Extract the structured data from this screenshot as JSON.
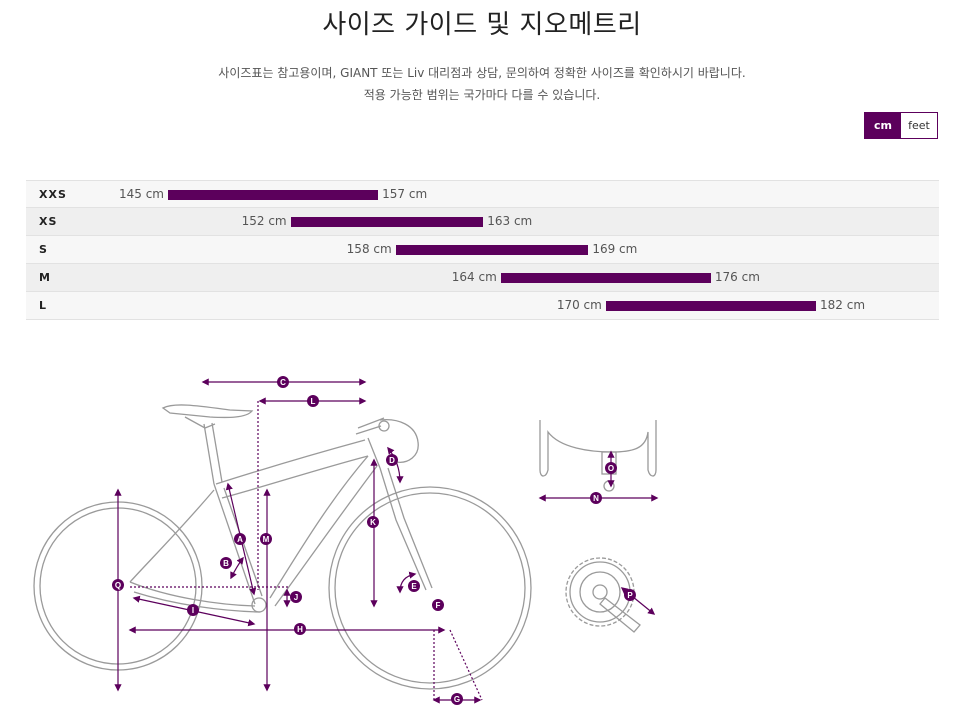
{
  "header": {
    "title": "사이즈 가이드 및 지오메트리",
    "desc_line1": "사이즈표는 참고용이며, GIANT 또는 Liv 대리점과 상담, 문의하여 정확한 사이즈를 확인하시기 바랍니다.",
    "desc_line2": "적용 가능한 범위는 국가마다 다를 수 있습니다."
  },
  "units": {
    "selected": "cm",
    "options": [
      "cm",
      "feet"
    ]
  },
  "size_chart": {
    "axis_unit": "cm",
    "accent_color": "#5c005c",
    "rows": [
      {
        "size": "XXS",
        "min": 145,
        "max": 157,
        "min_label": "145 cm",
        "max_label": "157 cm"
      },
      {
        "size": "XS",
        "min": 152,
        "max": 163,
        "min_label": "152 cm",
        "max_label": "163 cm"
      },
      {
        "size": "S",
        "min": 158,
        "max": 169,
        "min_label": "158 cm",
        "max_label": "169 cm"
      },
      {
        "size": "M",
        "min": 164,
        "max": 176,
        "min_label": "164 cm",
        "max_label": "176 cm"
      },
      {
        "size": "L",
        "min": 170,
        "max": 182,
        "min_label": "170 cm",
        "max_label": "182 cm"
      }
    ]
  },
  "geometry_markers": [
    "A",
    "B",
    "C",
    "D",
    "E",
    "F",
    "G",
    "H",
    "I",
    "J",
    "K",
    "L",
    "M",
    "N",
    "O",
    "P",
    "Q"
  ]
}
